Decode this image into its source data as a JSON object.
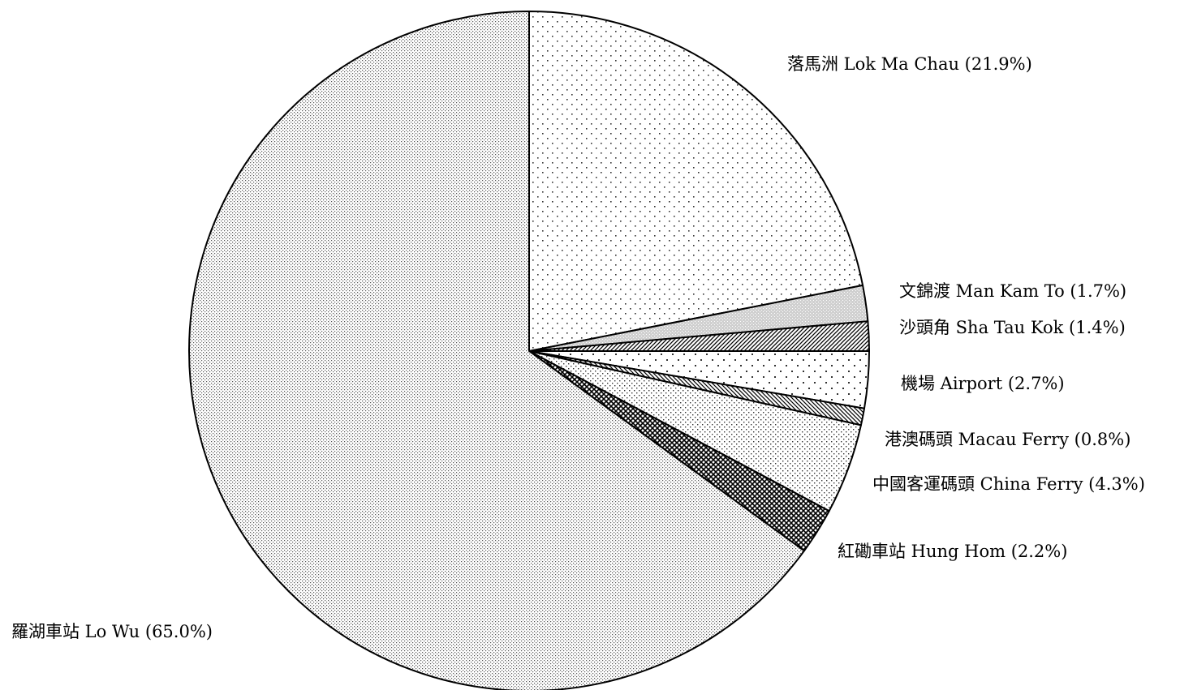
{
  "chart_data": {
    "type": "pie",
    "title": "",
    "slices": [
      {
        "label": "落馬洲 Lok Ma Chau (21.9%)",
        "value": 21.9,
        "pattern": "dots-sparse"
      },
      {
        "label": "文錦渡 Man Kam To (1.7%)",
        "value": 1.7,
        "pattern": "dots-gray"
      },
      {
        "label": "沙頭角 Sha Tau Kok (1.4%)",
        "value": 1.4,
        "pattern": "diag-dense"
      },
      {
        "label": "機場 Airport (2.7%)",
        "value": 2.7,
        "pattern": "dots-large"
      },
      {
        "label": "港澳碼頭 Macau Ferry (0.8%)",
        "value": 0.8,
        "pattern": "diag-right"
      },
      {
        "label": "中國客運碼頭 China Ferry (4.3%)",
        "value": 4.3,
        "pattern": "dots-medium"
      },
      {
        "label": "紅磡車站 Hung Hom (2.2%)",
        "value": 2.2,
        "pattern": "crosshatch"
      },
      {
        "label": "羅湖車站 Lo Wu (65.0%)",
        "value": 65.0,
        "pattern": "dots-fine"
      }
    ],
    "start": "12 o'clock",
    "direction": "clockwise",
    "legend": "none (labels beside slices)"
  }
}
